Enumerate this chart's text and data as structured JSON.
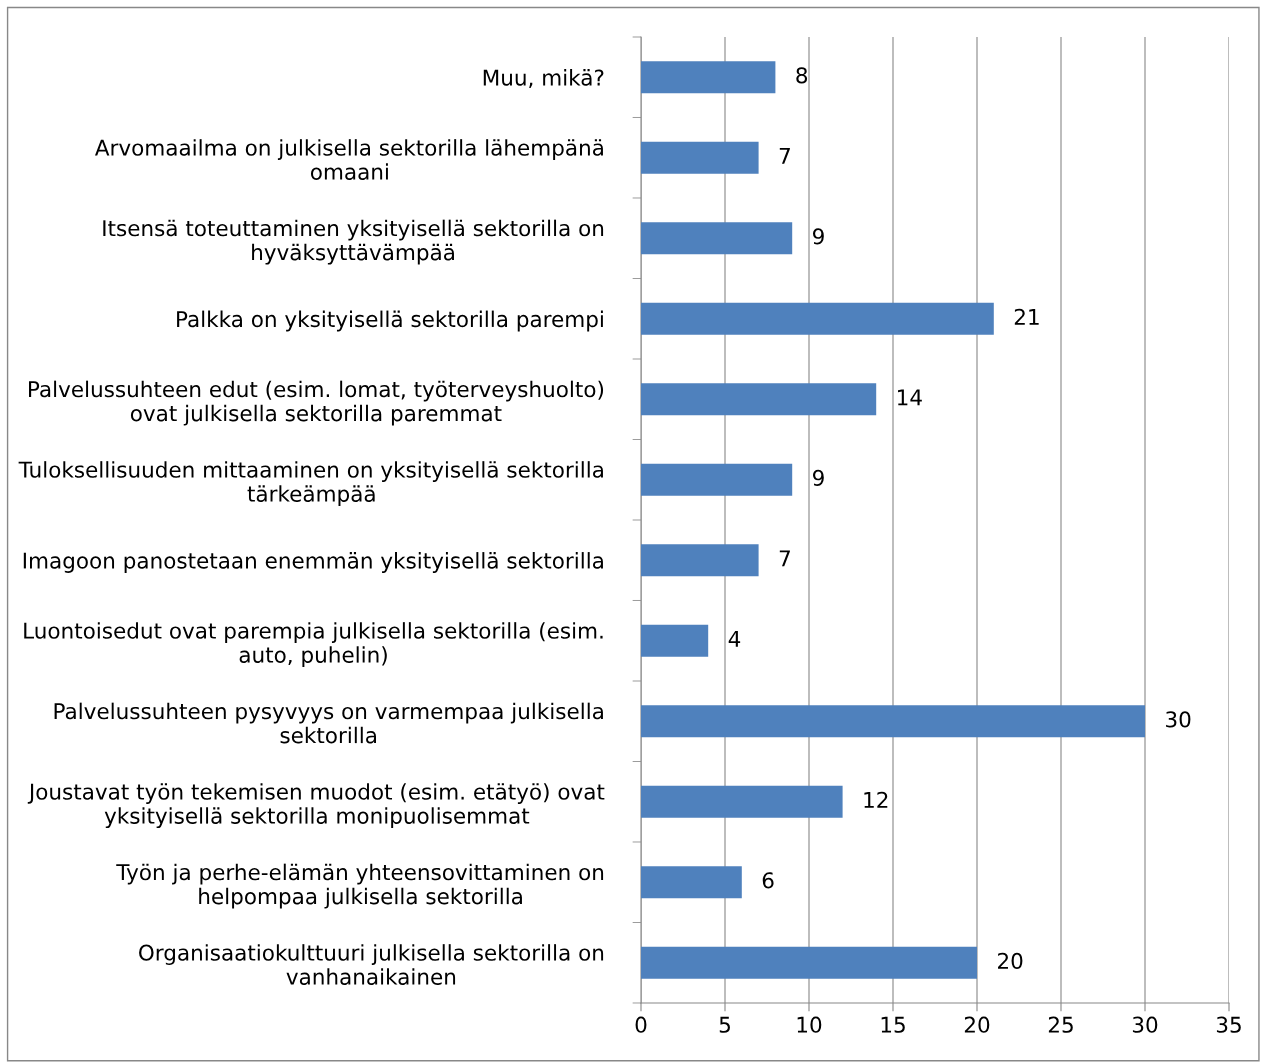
{
  "chart_data": {
    "type": "bar",
    "orientation": "horizontal",
    "categories": [
      "Muu, mikä?",
      "Arvomaailma on julkisella sektorilla lähempänä\nomaani",
      "Itsensä toteuttaminen yksityisellä sektorilla on\nhyväksyttävämpää",
      "Palkka on yksityisellä sektorilla parempi",
      "Palvelussuhteen edut (esim. lomat, työterveyshuolto)\novat julkisella sektorilla paremmat",
      "Tuloksellisuuden mittaaminen on yksityisellä sektorilla\ntärkeämpää",
      "Imagoon panostetaan enemmän yksityisellä sektorilla",
      "Luontoisedut ovat parempia julkisella sektorilla (esim.\nauto, puhelin)",
      "Palvelussuhteen pysyvyys on varmempaa julkisella\nsektorilla",
      "Joustavat työn tekemisen muodot (esim. etätyö) ovat\nyksityisellä sektorilla monipuolisemmat",
      "Työn ja perhe-elämän yhteensovittaminen on\nhelpompaa julkisella sektorilla",
      "Organisaatiokulttuuri julkisella sektorilla on\nvanhanaikainen"
    ],
    "values": [
      8,
      7,
      9,
      21,
      14,
      9,
      7,
      4,
      30,
      12,
      6,
      20
    ],
    "color": "#4f81bd",
    "data_labels": true,
    "grid": "x",
    "legend": false,
    "xlim": [
      0,
      35
    ],
    "xticks": [
      0,
      5,
      10,
      15,
      20,
      25,
      30,
      35
    ]
  }
}
